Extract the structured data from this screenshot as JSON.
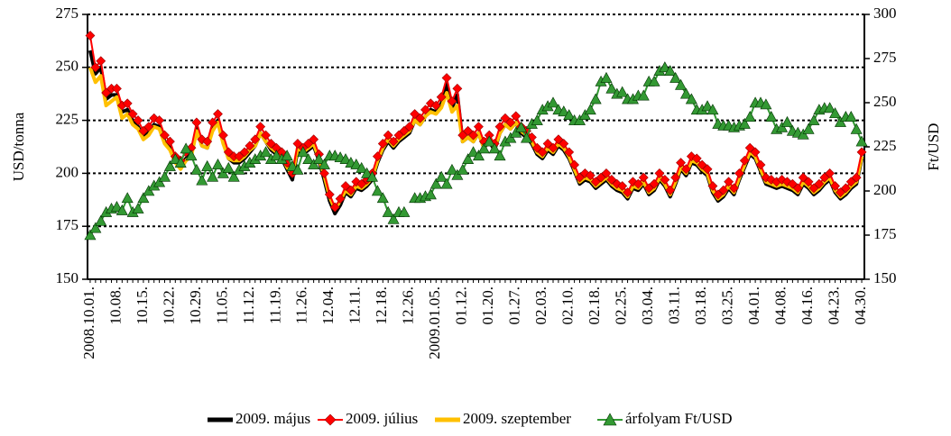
{
  "chart_data": {
    "type": "line",
    "y_label": "USD/tonna",
    "y2_label": "Ft/USD",
    "categories": [
      "2008.10.01.",
      null,
      null,
      null,
      null,
      "10.08.",
      null,
      null,
      null,
      null,
      "10.15.",
      null,
      null,
      null,
      null,
      "10.22.",
      null,
      null,
      null,
      null,
      "10.29.",
      null,
      null,
      null,
      null,
      "11.05.",
      null,
      null,
      null,
      null,
      "11.12.",
      null,
      null,
      null,
      null,
      "11.19.",
      null,
      null,
      null,
      null,
      "11.26.",
      null,
      null,
      null,
      null,
      "12.04.",
      null,
      null,
      null,
      null,
      "12.11.",
      null,
      null,
      null,
      null,
      "12.18.",
      null,
      null,
      null,
      null,
      "12.26.",
      null,
      null,
      null,
      null,
      "2009.01.05.",
      null,
      null,
      null,
      null,
      "01.12.",
      null,
      null,
      null,
      null,
      "01.20.",
      null,
      null,
      null,
      null,
      "01.27.",
      null,
      null,
      null,
      null,
      "02.03.",
      null,
      null,
      null,
      null,
      "02.10.",
      null,
      null,
      null,
      null,
      "02.18.",
      null,
      null,
      null,
      null,
      "02.25.",
      null,
      null,
      null,
      null,
      "03.04.",
      null,
      null,
      null,
      null,
      "03.11.",
      null,
      null,
      null,
      null,
      "03.18.",
      null,
      null,
      null,
      null,
      "03.25.",
      null,
      null,
      null,
      null,
      "04.01.",
      null,
      null,
      null,
      null,
      "04.08.",
      null,
      null,
      null,
      null,
      "04.16.",
      null,
      null,
      null,
      null,
      "04.23.",
      null,
      null,
      null,
      null,
      "04.30."
    ],
    "ylim": [
      150,
      275
    ],
    "yticks": [
      150,
      175,
      200,
      225,
      250,
      275
    ],
    "y2lim": [
      150,
      300
    ],
    "y2ticks": [
      150,
      175,
      200,
      225,
      250,
      275,
      300
    ],
    "grid": true,
    "legend": "bottom",
    "series": [
      {
        "name": "2009. május",
        "color": "#000000",
        "marker": "none",
        "values": [
          258,
          247,
          250,
          235,
          237,
          237,
          229,
          230,
          225,
          222,
          217,
          219,
          223,
          222,
          215,
          212,
          205,
          203,
          207,
          209,
          221,
          213,
          212,
          221,
          225,
          215,
          207,
          205,
          205,
          207,
          210,
          213,
          219,
          215,
          211,
          209,
          207,
          202,
          197,
          211,
          209,
          211,
          213,
          206,
          197,
          187,
          181,
          185,
          191,
          189,
          193,
          192,
          194,
          197,
          205,
          211,
          215,
          212,
          215,
          217,
          219,
          225,
          223,
          227,
          230,
          229,
          233,
          242,
          231,
          237,
          215,
          217,
          215,
          219,
          212,
          215,
          211,
          219,
          223,
          221,
          224,
          219,
          217,
          214,
          209,
          207,
          211,
          209,
          213,
          211,
          207,
          201,
          195,
          197,
          196,
          193,
          195,
          197,
          194,
          192,
          191,
          188,
          193,
          192,
          195,
          190,
          192,
          197,
          194,
          189,
          195,
          202,
          199,
          205,
          204,
          201,
          199,
          191,
          187,
          189,
          193,
          190,
          197,
          203,
          209,
          207,
          201,
          195,
          194,
          193,
          194,
          193,
          192,
          190,
          195,
          193,
          190,
          192,
          195,
          197,
          191,
          188,
          190,
          193,
          195,
          207
        ]
      },
      {
        "name": "2009. július",
        "color": "#ff0000",
        "marker": "diamond",
        "values": [
          265,
          250,
          253,
          238,
          240,
          240,
          232,
          233,
          228,
          225,
          220,
          222,
          226,
          225,
          218,
          215,
          208,
          206,
          210,
          212,
          224,
          216,
          215,
          224,
          228,
          218,
          210,
          208,
          208,
          210,
          213,
          216,
          222,
          218,
          214,
          212,
          210,
          205,
          200,
          214,
          212,
          214,
          216,
          209,
          200,
          190,
          184,
          188,
          194,
          192,
          196,
          195,
          197,
          200,
          208,
          214,
          218,
          215,
          218,
          220,
          222,
          228,
          226,
          230,
          233,
          232,
          236,
          245,
          234,
          240,
          218,
          220,
          218,
          222,
          215,
          218,
          214,
          222,
          226,
          224,
          227,
          222,
          220,
          217,
          212,
          210,
          214,
          212,
          216,
          214,
          210,
          204,
          198,
          200,
          199,
          196,
          198,
          200,
          197,
          195,
          194,
          191,
          196,
          195,
          198,
          193,
          195,
          200,
          197,
          192,
          198,
          205,
          202,
          208,
          207,
          204,
          202,
          194,
          190,
          192,
          196,
          193,
          200,
          206,
          212,
          210,
          204,
          198,
          197,
          196,
          197,
          196,
          195,
          193,
          198,
          196,
          193,
          195,
          198,
          200,
          194,
          191,
          193,
          196,
          198,
          210
        ]
      },
      {
        "name": "2009. szeptember",
        "color": "#ffc000",
        "marker": "none",
        "values": [
          250,
          243,
          246,
          232,
          234,
          236,
          226,
          228,
          223,
          221,
          216,
          218,
          222,
          221,
          214,
          211,
          205,
          202,
          206,
          208,
          220,
          213,
          212,
          220,
          224,
          214,
          207,
          206,
          206,
          208,
          211,
          213,
          219,
          215,
          212,
          210,
          208,
          203,
          199,
          212,
          210,
          212,
          214,
          207,
          199,
          189,
          183,
          187,
          192,
          190,
          194,
          193,
          195,
          198,
          206,
          212,
          216,
          213,
          216,
          218,
          220,
          225,
          223,
          227,
          229,
          228,
          231,
          238,
          229,
          232,
          215,
          217,
          215,
          219,
          212,
          216,
          212,
          219,
          223,
          221,
          224,
          220,
          218,
          215,
          210,
          208,
          212,
          210,
          214,
          212,
          208,
          202,
          196,
          198,
          197,
          194,
          196,
          198,
          195,
          193,
          192,
          189,
          194,
          193,
          196,
          191,
          193,
          198,
          195,
          190,
          196,
          203,
          200,
          206,
          205,
          202,
          200,
          192,
          188,
          190,
          194,
          191,
          198,
          204,
          210,
          208,
          202,
          196,
          195,
          194,
          195,
          194,
          193,
          191,
          196,
          194,
          191,
          193,
          196,
          198,
          192,
          189,
          191,
          194,
          196,
          208
        ]
      },
      {
        "name": "árfolyam Ft/USD",
        "color": "#339933",
        "marker": "triangle",
        "axis": "y2",
        "values": [
          175,
          179,
          183,
          188,
          190,
          191,
          189,
          196,
          188,
          190,
          196,
          200,
          203,
          205,
          208,
          214,
          218,
          216,
          224,
          220,
          212,
          206,
          214,
          208,
          215,
          210,
          213,
          208,
          212,
          214,
          216,
          218,
          220,
          222,
          218,
          220,
          218,
          220,
          214,
          212,
          222,
          218,
          215,
          218,
          215,
          220,
          220,
          219,
          218,
          216,
          215,
          213,
          210,
          208,
          200,
          196,
          188,
          184,
          188,
          188,
          null,
          196,
          196,
          197,
          198,
          204,
          208,
          204,
          212,
          209,
          212,
          218,
          222,
          220,
          224,
          228,
          224,
          220,
          228,
          230,
          233,
          236,
          230,
          238,
          240,
          246,
          248,
          250,
          246,
          245,
          243,
          240,
          240,
          243,
          246,
          252,
          262,
          264,
          258,
          255,
          256,
          252,
          252,
          254,
          254,
          262,
          262,
          268,
          270,
          268,
          264,
          260,
          255,
          252,
          246,
          246,
          248,
          246,
          238,
          237,
          237,
          236,
          237,
          238,
          242,
          250,
          250,
          249,
          242,
          235,
          236,
          239,
          234,
          233,
          232,
          235,
          240,
          246,
          247,
          247,
          244,
          239,
          242,
          242,
          235,
          228
        ]
      }
    ]
  }
}
